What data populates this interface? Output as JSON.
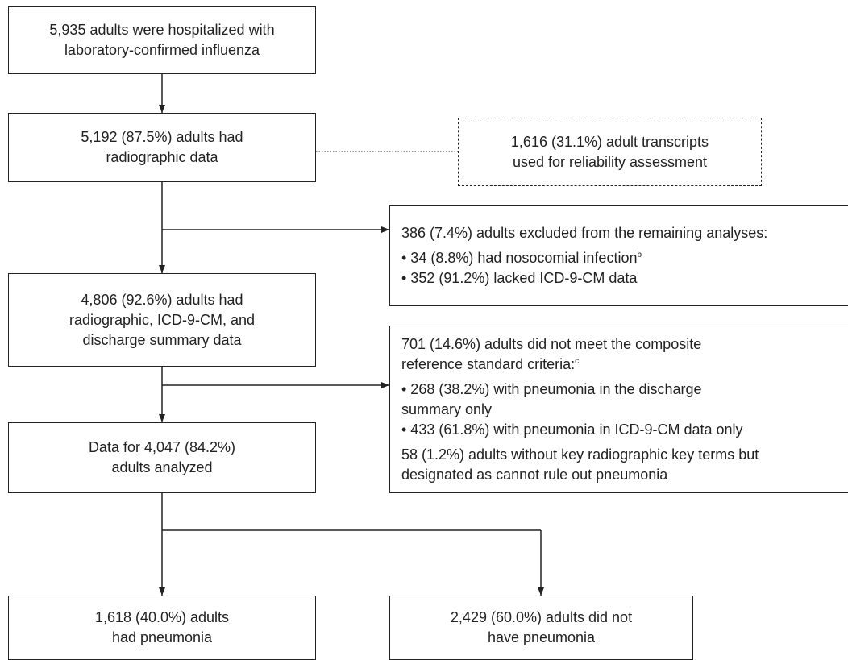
{
  "nodes": [
    {
      "lines": [
        {
          "text": "5,935 adults were hospitalized with"
        },
        {
          "text": "laboratory-confirmed influenza"
        }
      ]
    },
    {
      "lines": [
        {
          "text": "5,192 (87.5%) adults had"
        },
        {
          "text": "radiographic data"
        }
      ]
    },
    {
      "lines": [
        {
          "text": "1,616 (31.1%) adult transcripts"
        },
        {
          "text": "used for reliability assessment"
        }
      ]
    },
    {
      "lines": [
        {
          "text": "386 (7.4%) adults excluded from the remaining analyses:"
        },
        {
          "text": "• 34 (8.8%) had nosocomial infection",
          "sup": "b"
        },
        {
          "text": "• 352 (91.2%) lacked ICD-9-CM data"
        }
      ]
    },
    {
      "lines": [
        {
          "text": "4,806 (92.6%) adults had"
        },
        {
          "text": "radiographic, ICD-9-CM, and"
        },
        {
          "text": "discharge summary data"
        }
      ]
    },
    {
      "lines": [
        {
          "text": "701 (14.6%) adults did not meet the composite"
        },
        {
          "text": "reference standard criteria:",
          "sup": "c"
        },
        {
          "text": "• 268 (38.2%) with pneumonia in the discharge"
        },
        {
          "text": "summary only"
        },
        {
          "text": "• 433 (61.8%) with pneumonia in ICD-9-CM data only"
        },
        {
          "text": "58 (1.2%) adults without key radiographic key terms but"
        },
        {
          "text": "designated as cannot rule out pneumonia"
        }
      ]
    },
    {
      "lines": [
        {
          "text": "Data for 4,047 (84.2%)"
        },
        {
          "text": "adults analyzed"
        }
      ]
    },
    {
      "lines": [
        {
          "text": "1,618 (40.0%) adults"
        },
        {
          "text": "had pneumonia"
        }
      ]
    },
    {
      "lines": [
        {
          "text": "2,429 (60.0%) adults did not"
        },
        {
          "text": "have pneumonia"
        }
      ]
    }
  ]
}
